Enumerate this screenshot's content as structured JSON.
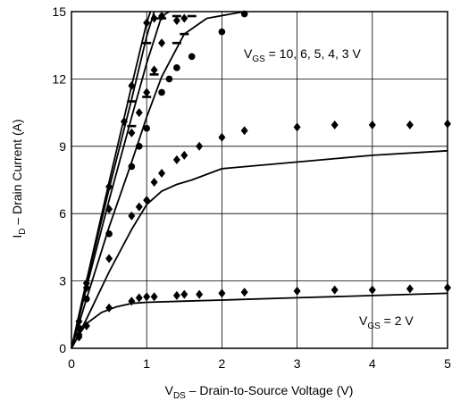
{
  "chart_data": {
    "type": "line",
    "title": "",
    "xlabel": {
      "main": "V",
      "sub": "DS",
      "rest": " – Drain-to-Source Voltage (V)"
    },
    "ylabel": {
      "main": "I",
      "sub": "D",
      "rest": " – Drain Current (A)"
    },
    "xlim": [
      0,
      5
    ],
    "ylim": [
      0,
      15
    ],
    "xticks": [
      0,
      1,
      2,
      3,
      4,
      5
    ],
    "yticks": [
      0,
      3,
      6,
      9,
      12,
      15
    ],
    "grid": true,
    "annotations": [
      {
        "main": "V",
        "sub": "GS",
        "rest": " = 10, 6, 5, 4, 3 V"
      },
      {
        "main": "V",
        "sub": "GS",
        "rest": " = 2 V"
      }
    ],
    "series": [
      {
        "marker": "none",
        "points": [
          [
            0,
            0
          ],
          [
            0.2,
            3.0
          ],
          [
            0.5,
            7.4
          ],
          [
            0.8,
            11.7
          ],
          [
            1.0,
            14.5
          ],
          [
            1.05,
            15
          ]
        ]
      },
      {
        "marker": "none",
        "points": [
          [
            0,
            0
          ],
          [
            0.2,
            2.9
          ],
          [
            0.5,
            7.1
          ],
          [
            0.8,
            11.1
          ],
          [
            1.0,
            13.9
          ],
          [
            1.1,
            15
          ]
        ]
      },
      {
        "marker": "none",
        "points": [
          [
            0,
            0
          ],
          [
            0.2,
            2.7
          ],
          [
            0.5,
            6.6
          ],
          [
            0.8,
            10.3
          ],
          [
            1.0,
            12.7
          ],
          [
            1.2,
            14.8
          ],
          [
            1.3,
            15
          ]
        ]
      },
      {
        "marker": "none",
        "points": [
          [
            0,
            0
          ],
          [
            0.2,
            2.2
          ],
          [
            0.5,
            5.4
          ],
          [
            0.8,
            8.3
          ],
          [
            1.0,
            10.3
          ],
          [
            1.2,
            12.1
          ],
          [
            1.5,
            14.0
          ],
          [
            1.8,
            14.7
          ],
          [
            2.3,
            15.0
          ]
        ]
      },
      {
        "marker": "none",
        "points": [
          [
            0,
            0
          ],
          [
            0.2,
            1.3
          ],
          [
            0.5,
            3.4
          ],
          [
            0.8,
            5.3
          ],
          [
            1.0,
            6.4
          ],
          [
            1.2,
            7.0
          ],
          [
            1.4,
            7.3
          ],
          [
            1.6,
            7.5
          ],
          [
            2.0,
            8.0
          ],
          [
            3.0,
            8.3
          ],
          [
            4.0,
            8.6
          ],
          [
            5.0,
            8.8
          ]
        ]
      },
      {
        "marker": "none",
        "points": [
          [
            0,
            0
          ],
          [
            0.1,
            0.6
          ],
          [
            0.2,
            1.1
          ],
          [
            0.4,
            1.6
          ],
          [
            0.6,
            1.85
          ],
          [
            0.8,
            2.0
          ],
          [
            1.0,
            2.05
          ],
          [
            1.5,
            2.1
          ],
          [
            2.0,
            2.15
          ],
          [
            3.0,
            2.25
          ],
          [
            4.0,
            2.35
          ],
          [
            5.0,
            2.45
          ]
        ]
      },
      {
        "marker": "diamond",
        "points": [
          [
            0.1,
            1.2
          ],
          [
            0.2,
            2.9
          ],
          [
            0.5,
            7.2
          ],
          [
            0.7,
            10.1
          ],
          [
            0.8,
            11.7
          ],
          [
            1.0,
            14.5
          ],
          [
            1.1,
            14.7
          ],
          [
            1.2,
            14.8
          ]
        ]
      },
      {
        "marker": "dash",
        "points": [
          [
            0.8,
            11.0
          ],
          [
            1.0,
            13.6
          ],
          [
            1.2,
            14.7
          ],
          [
            1.4,
            14.8
          ]
        ]
      },
      {
        "marker": "diamond",
        "points": [
          [
            0.2,
            2.7
          ],
          [
            0.5,
            6.2
          ],
          [
            0.8,
            9.6
          ],
          [
            0.9,
            10.5
          ],
          [
            1.0,
            11.4
          ],
          [
            1.1,
            12.4
          ],
          [
            1.2,
            13.6
          ],
          [
            1.4,
            14.6
          ],
          [
            1.5,
            14.7
          ]
        ]
      },
      {
        "marker": "dash",
        "points": [
          [
            0.8,
            9.9
          ],
          [
            1.0,
            11.2
          ],
          [
            1.1,
            12.2
          ],
          [
            1.4,
            13.6
          ],
          [
            1.5,
            14.0
          ],
          [
            1.6,
            14.8
          ]
        ]
      },
      {
        "marker": "circle",
        "points": [
          [
            0.1,
            0.9
          ],
          [
            0.2,
            2.2
          ],
          [
            0.5,
            5.1
          ],
          [
            0.8,
            8.1
          ],
          [
            0.9,
            9.0
          ],
          [
            1.0,
            9.8
          ],
          [
            1.2,
            11.4
          ],
          [
            1.3,
            12.0
          ],
          [
            1.4,
            12.5
          ],
          [
            1.6,
            13.0
          ],
          [
            2.0,
            14.1
          ],
          [
            2.3,
            14.9
          ]
        ]
      },
      {
        "marker": "diamond",
        "points": [
          [
            0.1,
            0.5
          ],
          [
            0.5,
            4.0
          ],
          [
            0.8,
            5.9
          ],
          [
            0.9,
            6.3
          ],
          [
            1.0,
            6.6
          ],
          [
            1.1,
            7.4
          ],
          [
            1.2,
            7.8
          ],
          [
            1.4,
            8.4
          ],
          [
            1.5,
            8.6
          ],
          [
            1.7,
            9.0
          ],
          [
            2.0,
            9.4
          ],
          [
            2.3,
            9.7
          ],
          [
            3.0,
            9.85
          ],
          [
            3.5,
            9.95
          ],
          [
            4.0,
            9.95
          ],
          [
            4.5,
            9.95
          ],
          [
            5.0,
            10.0
          ]
        ]
      },
      {
        "marker": "diamond",
        "points": [
          [
            0.1,
            0.6
          ],
          [
            0.2,
            1.0
          ],
          [
            0.5,
            1.8
          ],
          [
            0.8,
            2.1
          ],
          [
            0.9,
            2.25
          ],
          [
            1.0,
            2.3
          ],
          [
            1.1,
            2.3
          ],
          [
            1.4,
            2.35
          ],
          [
            1.5,
            2.4
          ],
          [
            1.7,
            2.4
          ],
          [
            2.0,
            2.45
          ],
          [
            2.3,
            2.5
          ],
          [
            3.0,
            2.55
          ],
          [
            3.5,
            2.6
          ],
          [
            4.0,
            2.6
          ],
          [
            4.5,
            2.65
          ],
          [
            5.0,
            2.7
          ]
        ]
      }
    ]
  }
}
